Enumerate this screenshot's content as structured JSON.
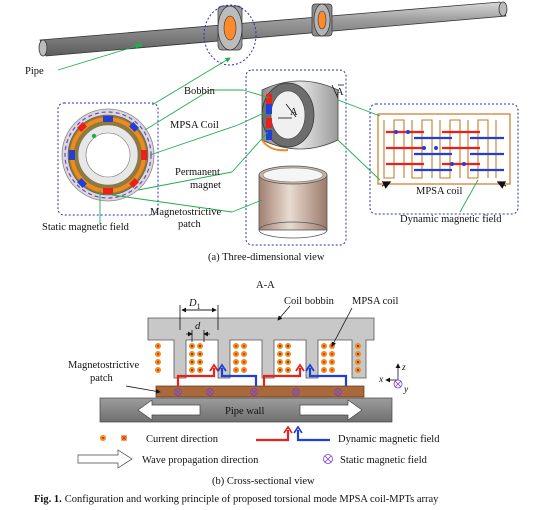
{
  "part_a": {
    "labels": {
      "pipe": "Pipe",
      "bobbin": "Bobbin",
      "mpsa_coil": "MPSA Coil",
      "permanent_magnet_1": "Permanent",
      "permanent_magnet_2": "magnet",
      "magnetostrictive_patch_1": "Magnetostrictive",
      "magnetostrictive_patch_2": "patch",
      "static_field": "Static magnetic field",
      "coil_inset": "MPSA coil",
      "dynamic_field": "Dynamic magnetic field",
      "section_a": "A",
      "section_a2": "A"
    },
    "caption": "(a) Three-dimensional view"
  },
  "part_b": {
    "section_title": "A-A",
    "labels": {
      "coil_bobbin": "Coil bobbin",
      "mpsa_coil": "MPSA coil",
      "d1": "D",
      "d1_sub": "1",
      "d": "d",
      "magnetostrictive_1": "Magnetostrictive",
      "magnetostrictive_2": "patch",
      "pipe_wall": "Pipe wall",
      "axis_z": "z",
      "axis_x": "x",
      "axis_y": "y"
    },
    "legend": {
      "current_direction": "Current direction",
      "dynamic_field": "Dynamic magnetic field",
      "wave_direction": "Wave propagation direction",
      "static_field": "Static magnetic field"
    },
    "caption": "(b) Cross-sectional view"
  },
  "figure": {
    "number": "Fig. 1.",
    "caption": "Configuration and working principle of proposed torsional mode MPSA coil-MPTs array"
  },
  "colors": {
    "red": "#e8211c",
    "blue": "#1f3fd6",
    "green": "#1fae4b",
    "orange": "#f08a1e",
    "bobbin_gray": "#c8c8c8",
    "patch_brown": "#a9693a",
    "frame_blue": "#2a2fbf"
  }
}
